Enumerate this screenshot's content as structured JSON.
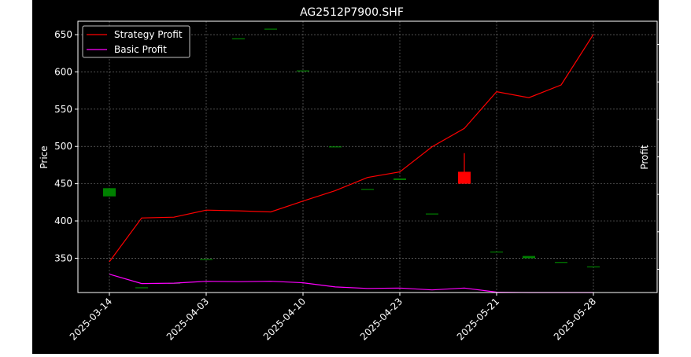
{
  "chart_data": {
    "type": "candlestick+line",
    "title": "AG2512P7900.SHF",
    "ylabel_left": "Price",
    "ylabel_right": "Profit",
    "x_tick_labels": [
      "2025-03-14",
      "2025-04-03",
      "2025-04-10",
      "2025-04-23",
      "2025-05-21",
      "2025-05-28"
    ],
    "x_tick_indices": [
      0,
      3,
      6,
      9,
      12,
      15
    ],
    "left_yticks": [
      350,
      400,
      450,
      500,
      550,
      600,
      650
    ],
    "left_ylim": [
      304,
      668
    ],
    "right_yticks": [
      1,
      2,
      3,
      4,
      5,
      6,
      7
    ],
    "right_ylim": [
      0.38,
      7.62
    ],
    "grid": true,
    "legend_position": "upper-left",
    "candles": [
      {
        "i": 0,
        "open": 433,
        "close": 444,
        "high": 444,
        "low": 433
      },
      {
        "i": 1,
        "open": 311,
        "close": 311,
        "high": 311,
        "low": 311
      },
      {
        "i": 2,
        "open": 317,
        "close": 317,
        "high": 317,
        "low": 317
      },
      {
        "i": 3,
        "open": 349,
        "close": 349,
        "high": 349,
        "low": 349
      },
      {
        "i": 4,
        "open": 645,
        "close": 645,
        "high": 645,
        "low": 645
      },
      {
        "i": 5,
        "open": 658,
        "close": 658,
        "high": 658,
        "low": 658
      },
      {
        "i": 6,
        "open": 602,
        "close": 602,
        "high": 602,
        "low": 602
      },
      {
        "i": 7,
        "open": 500,
        "close": 500,
        "high": 500,
        "low": 500
      },
      {
        "i": 8,
        "open": 443,
        "close": 443,
        "high": 443,
        "low": 443
      },
      {
        "i": 9,
        "open": 455,
        "close": 457,
        "high": 457,
        "low": 455
      },
      {
        "i": 10,
        "open": 410,
        "close": 410,
        "high": 410,
        "low": 410
      },
      {
        "i": 11,
        "open": 466,
        "close": 450,
        "high": 491,
        "low": 450
      },
      {
        "i": 12,
        "open": 359,
        "close": 359,
        "high": 359,
        "low": 359
      },
      {
        "i": 13,
        "open": 350,
        "close": 353,
        "high": 353,
        "low": 350
      },
      {
        "i": 14,
        "open": 345,
        "close": 345,
        "high": 345,
        "low": 345
      },
      {
        "i": 15,
        "open": 339,
        "close": 339,
        "high": 339,
        "low": 339
      }
    ],
    "series": [
      {
        "name": "Strategy Profit",
        "color": "#ff0000",
        "x": [
          0,
          1,
          2,
          3,
          4,
          5,
          6,
          7,
          8,
          9,
          10,
          11,
          12,
          13,
          14,
          15
        ],
        "values": [
          1.2,
          2.37,
          2.39,
          2.58,
          2.56,
          2.53,
          2.82,
          3.1,
          3.45,
          3.6,
          4.27,
          4.76,
          5.74,
          5.58,
          5.92,
          7.27
        ]
      },
      {
        "name": "Basic Profit",
        "color": "#ff00ff",
        "x": [
          0,
          1,
          2,
          3,
          4,
          5,
          6,
          7,
          8,
          9,
          10,
          11,
          12,
          13,
          14,
          15
        ],
        "values": [
          0.87,
          0.62,
          0.63,
          0.68,
          0.67,
          0.68,
          0.64,
          0.53,
          0.49,
          0.5,
          0.45,
          0.5,
          0.39,
          0.38,
          0.38,
          0.38
        ]
      }
    ],
    "colors": {
      "up": "#008000",
      "down": "#ff0000"
    }
  }
}
